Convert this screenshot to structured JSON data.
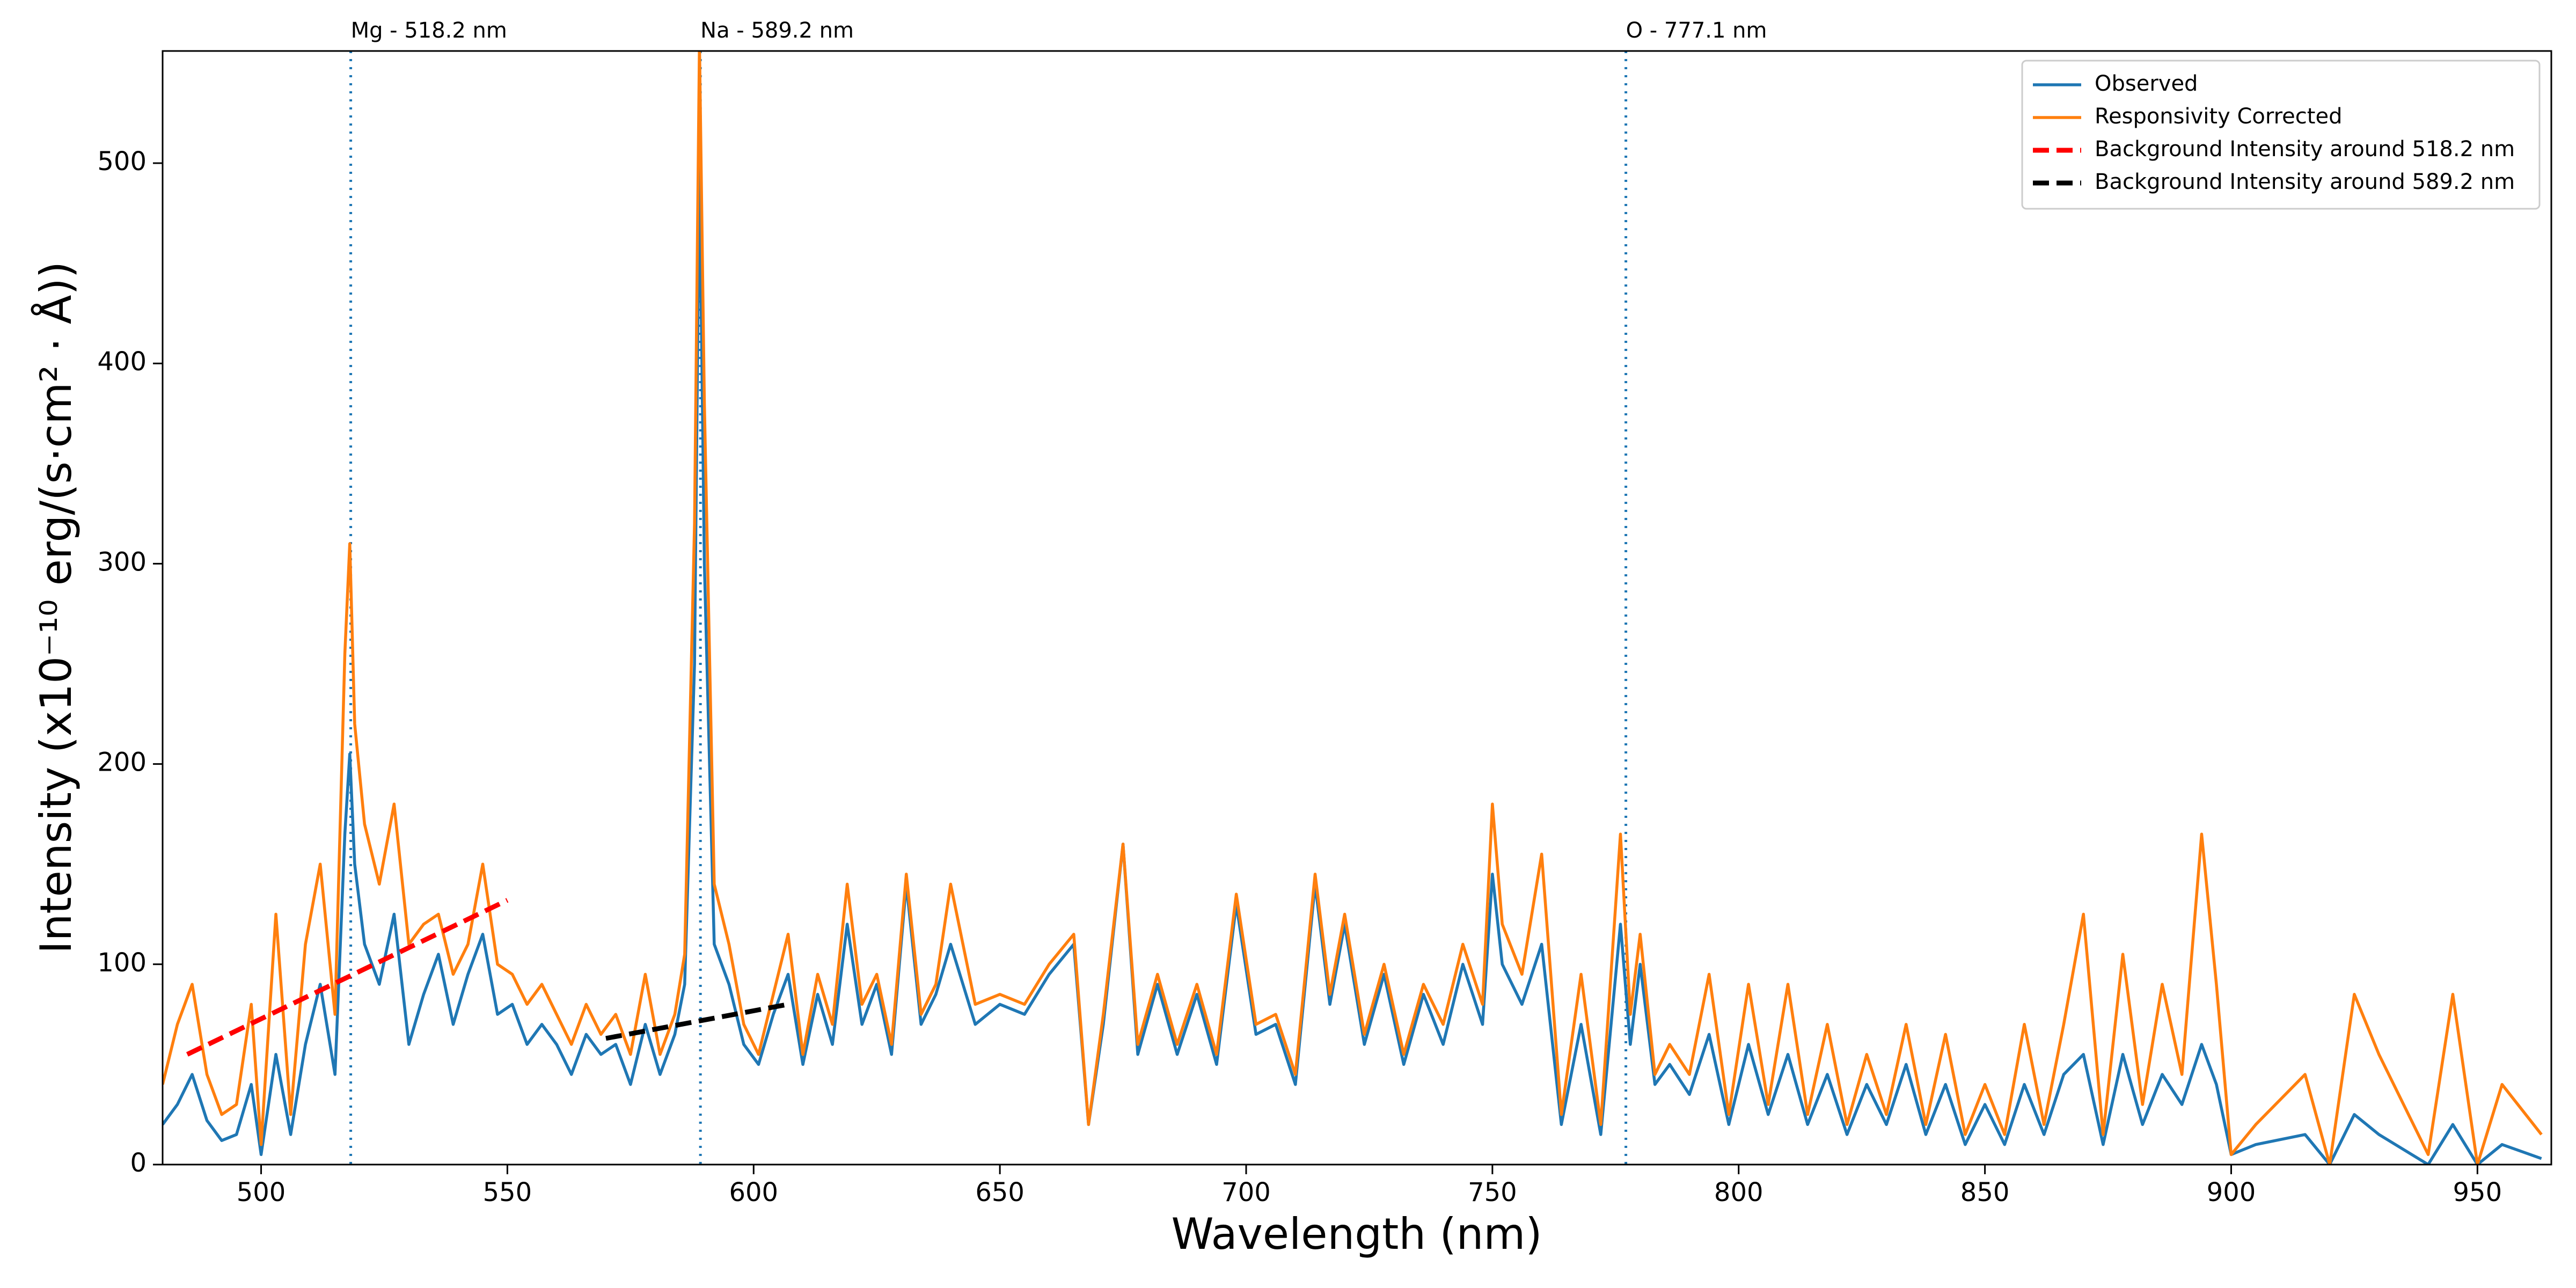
{
  "chart_data": {
    "type": "line",
    "xlabel": "Wavelength (nm)",
    "ylabel": "Intensity (x10⁻¹⁰ erg/(s·cm² · Å))",
    "xlim": [
      480,
      965
    ],
    "ylim": [
      0,
      556
    ],
    "xticks": [
      500,
      550,
      600,
      650,
      700,
      750,
      800,
      850,
      900,
      950
    ],
    "yticks": [
      0,
      100,
      200,
      300,
      400,
      500
    ],
    "legend": "upper right",
    "x": [
      480,
      483,
      486,
      489,
      492,
      495,
      498,
      500,
      503,
      506,
      509,
      512,
      515,
      517,
      518,
      519,
      521,
      524,
      527,
      530,
      533,
      536,
      539,
      542,
      545,
      548,
      551,
      554,
      557,
      560,
      563,
      566,
      569,
      572,
      575,
      578,
      581,
      584,
      586,
      588,
      589,
      590,
      592,
      595,
      598,
      601,
      604,
      607,
      610,
      613,
      616,
      619,
      622,
      625,
      628,
      631,
      634,
      637,
      640,
      645,
      650,
      655,
      660,
      665,
      668,
      671,
      675,
      678,
      682,
      686,
      690,
      694,
      698,
      702,
      706,
      710,
      714,
      717,
      720,
      724,
      728,
      732,
      736,
      740,
      744,
      748,
      750,
      752,
      756,
      760,
      764,
      768,
      772,
      776,
      778,
      780,
      783,
      786,
      790,
      794,
      798,
      802,
      806,
      810,
      814,
      818,
      822,
      826,
      830,
      834,
      838,
      842,
      846,
      850,
      854,
      858,
      862,
      866,
      870,
      874,
      878,
      882,
      886,
      890,
      894,
      897,
      900,
      905,
      915,
      920,
      925,
      930,
      940,
      945,
      950,
      955,
      963
    ],
    "series": [
      {
        "name": "Observed",
        "color": "#1f77b4",
        "dash": false,
        "values": [
          20,
          30,
          45,
          22,
          12,
          15,
          40,
          5,
          55,
          15,
          60,
          90,
          45,
          165,
          205,
          150,
          110,
          90,
          125,
          60,
          85,
          105,
          70,
          95,
          115,
          75,
          80,
          60,
          70,
          60,
          45,
          65,
          55,
          60,
          40,
          70,
          45,
          65,
          90,
          250,
          500,
          300,
          110,
          90,
          60,
          50,
          75,
          95,
          50,
          85,
          60,
          120,
          70,
          90,
          55,
          140,
          70,
          85,
          110,
          70,
          80,
          75,
          95,
          110,
          20,
          70,
          160,
          55,
          90,
          55,
          85,
          50,
          130,
          65,
          70,
          40,
          140,
          80,
          120,
          60,
          95,
          50,
          85,
          60,
          100,
          70,
          145,
          100,
          80,
          110,
          20,
          70,
          15,
          120,
          60,
          100,
          40,
          50,
          35,
          65,
          20,
          60,
          25,
          55,
          20,
          45,
          15,
          40,
          20,
          50,
          15,
          40,
          10,
          30,
          10,
          40,
          15,
          45,
          55,
          10,
          55,
          20,
          45,
          30,
          60,
          40,
          5,
          10,
          15,
          0,
          25,
          15,
          0,
          20,
          0,
          10,
          3
        ]
      },
      {
        "name": "Responsivity Corrected",
        "color": "#ff7f0e",
        "dash": false,
        "values": [
          40,
          70,
          90,
          45,
          25,
          30,
          80,
          10,
          125,
          25,
          110,
          150,
          75,
          255,
          310,
          220,
          170,
          140,
          180,
          110,
          120,
          125,
          95,
          110,
          150,
          100,
          95,
          80,
          90,
          75,
          60,
          80,
          65,
          75,
          55,
          95,
          55,
          75,
          105,
          320,
          560,
          380,
          140,
          110,
          70,
          55,
          85,
          115,
          55,
          95,
          70,
          140,
          80,
          95,
          60,
          145,
          75,
          90,
          140,
          80,
          85,
          80,
          100,
          115,
          20,
          75,
          160,
          60,
          95,
          60,
          90,
          55,
          135,
          70,
          75,
          45,
          145,
          85,
          125,
          65,
          100,
          55,
          90,
          70,
          110,
          80,
          180,
          120,
          95,
          155,
          25,
          95,
          20,
          165,
          75,
          115,
          45,
          60,
          45,
          95,
          25,
          90,
          30,
          90,
          25,
          70,
          20,
          55,
          25,
          70,
          20,
          65,
          15,
          40,
          15,
          70,
          20,
          70,
          125,
          15,
          105,
          30,
          90,
          45,
          165,
          90,
          5,
          20,
          45,
          0,
          85,
          55,
          5,
          85,
          0,
          40,
          15
        ]
      },
      {
        "name": "Background Intensity around 518.2 nm",
        "color": "#ff0000",
        "dash": true,
        "x": [
          485,
          550
        ],
        "values": [
          55,
          132
        ]
      },
      {
        "name": "Background Intensity around 589.2 nm",
        "color": "#000000",
        "dash": true,
        "x": [
          570,
          607
        ],
        "values": [
          63,
          80
        ]
      }
    ],
    "vlines": [
      {
        "x": 518.2,
        "label": "Mg - 518.2 nm",
        "color": "#1f77b4"
      },
      {
        "x": 589.2,
        "label": "Na - 589.2 nm",
        "color": "#1f77b4"
      },
      {
        "x": 777.1,
        "label": "O - 777.1 nm",
        "color": "#1f77b4"
      }
    ]
  }
}
